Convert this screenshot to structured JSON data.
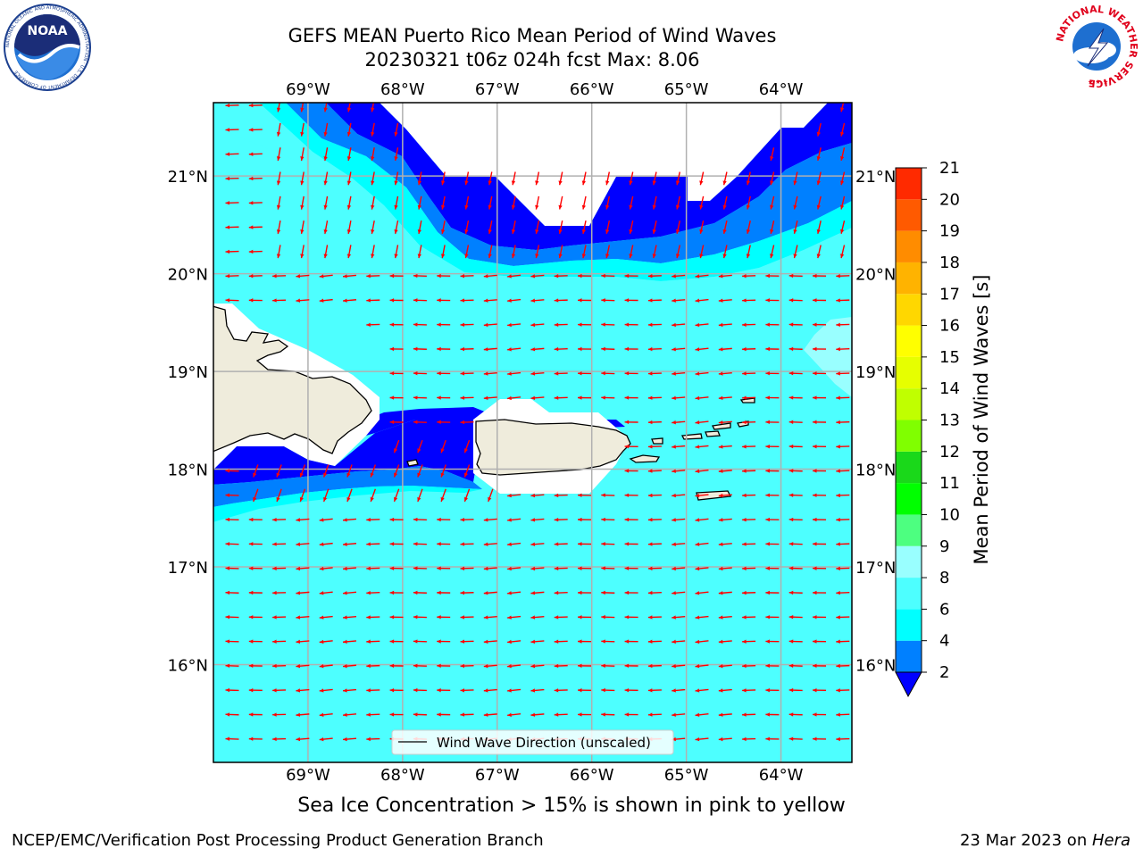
{
  "header": {
    "title_line1": "GEFS MEAN Puerto Rico Mean Period of Wind Waves",
    "title_line2": "20230321 t06z 024h fcst   Max: 8.06"
  },
  "logos": {
    "noaa_text": "NOAA",
    "nws_text": "NATIONAL WEATHER SERVICE",
    "noaa_ring_text": "NATIONAL OCEANIC AND ATMOSPHERIC ADMINISTRATION · U.S. DEPARTMENT OF COMMERCE"
  },
  "map": {
    "lon_labels": [
      "69°W",
      "68°W",
      "67°W",
      "66°W",
      "65°W",
      "64°W"
    ],
    "lat_labels": [
      "21°N",
      "20°N",
      "19°N",
      "18°N",
      "17°N",
      "16°N"
    ],
    "lon_range": [
      -70.0,
      -63.25
    ],
    "lat_range": [
      15.0,
      21.75
    ],
    "legend_label": "Wind Wave Direction (unscaled)",
    "arrow_color": "#ff0000",
    "land_color": "#efecdc",
    "colors": {
      "lt2": "#0000ff",
      "2-4": "#0080ff",
      "4-6": "#00ffff",
      "6-8": "#4dffff",
      "8-9": "#99ffff"
    }
  },
  "colorbar": {
    "label": "Mean Period of Wind Waves [s]",
    "ticks": [
      "2",
      "4",
      "6",
      "8",
      "9",
      "10",
      "11",
      "12",
      "13",
      "14",
      "15",
      "16",
      "17",
      "18",
      "19",
      "20",
      "21"
    ],
    "colors": [
      "#0080ff",
      "#00ffff",
      "#4dffff",
      "#99ffff",
      "#4dff80",
      "#00ff00",
      "#1ad81a",
      "#80ff00",
      "#c0ff00",
      "#e6ff00",
      "#ffff00",
      "#ffd700",
      "#ffb300",
      "#ff8c00",
      "#ff5a00",
      "#ff2a00"
    ],
    "under_color": "#0000ff"
  },
  "subtitle": "Sea Ice Concentration > 15% is shown in pink to yellow",
  "footer": {
    "left": "NCEP/EMC/Verification Post Processing Product Generation Branch",
    "date": "23 Mar 2023 on ",
    "host": "Hera"
  }
}
